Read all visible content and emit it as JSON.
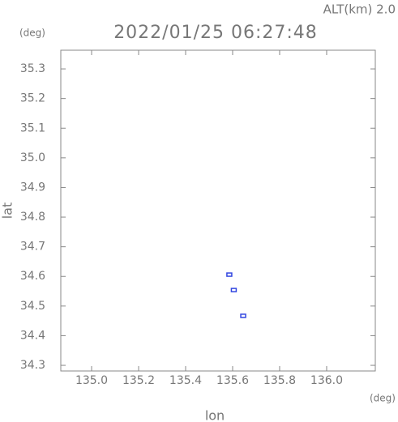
{
  "chart_data": {
    "type": "scatter",
    "title": "2022/01/25 06:27:48",
    "subtitle": "ALT(km) 2.0",
    "xlabel": "lon",
    "ylabel": "lat",
    "xunit": "(deg)",
    "yunit": "(deg)",
    "x": [
      135.586,
      135.605,
      135.645
    ],
    "y": [
      34.606,
      34.554,
      34.467
    ],
    "color": "#3347e0",
    "xlim": [
      134.869,
      136.207
    ],
    "ylim": [
      34.281,
      35.363
    ],
    "xticks": [
      {
        "value": 135.0,
        "label": "135.0"
      },
      135.2,
      135.4,
      135.6,
      135.8,
      {
        "value": 136.0,
        "label": "136.0"
      }
    ],
    "yticks": [
      34.3,
      34.4,
      34.5,
      34.6,
      34.7,
      34.8,
      34.9,
      {
        "value": 35.0,
        "label": "35.0"
      },
      35.1,
      35.2,
      35.3
    ]
  }
}
